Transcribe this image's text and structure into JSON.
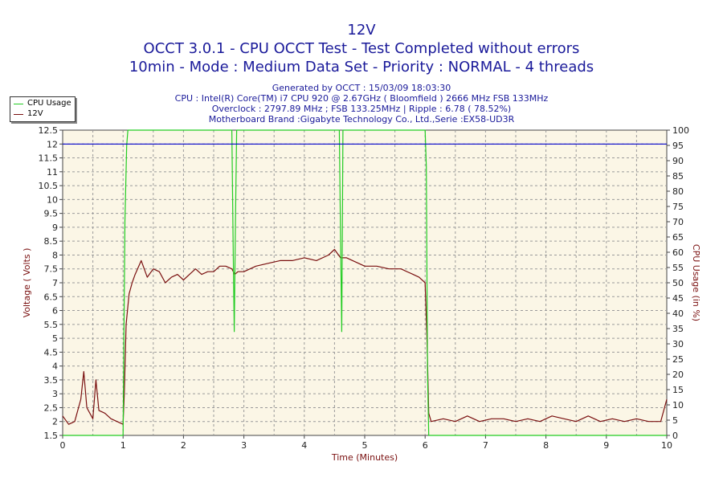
{
  "title": {
    "line1": "12V",
    "line2": "OCCT 3.0.1 - CPU OCCT Test - Test Completed without errors",
    "line3": "10min - Mode : Medium Data Set - Priority : NORMAL - 4 threads"
  },
  "info": {
    "generated": "Generated by OCCT : 15/03/09 18:03:30",
    "cpu": "CPU : Intel(R) Core(TM) i7 CPU 920 @ 2.67GHz ( Bloomfield ) 2666 MHz FSB 133MHz",
    "overclock": "Overclock : 2797.89 MHz ; FSB 133.25MHz | Ripple : 6.78 ( 78.52%)",
    "motherboard": "Motherboard Brand :Gigabyte Technology Co., Ltd.,Serie :EX58-UD3R"
  },
  "legend": {
    "cpu_usage": "CPU Usage",
    "v12": "12V"
  },
  "colors": {
    "cpu": "#22cc22",
    "v12": "#7a1010",
    "voltage_ref": "#0000cc",
    "plot_bg": "#fbf6e6",
    "title": "#1a1a9a"
  },
  "chart_data": {
    "type": "line",
    "xlabel": "Time (Minutes)",
    "ylabel_left": "Voltage ( Volts )",
    "ylabel_right": "CPU Usage (in %)",
    "xlim": [
      0,
      10
    ],
    "ylim_left": [
      1.5,
      12.5
    ],
    "ylim_right": [
      0,
      100
    ],
    "x_ticks": [
      "0",
      "1",
      "2",
      "3",
      "4",
      "5",
      "6",
      "7",
      "8",
      "9",
      "10"
    ],
    "y_ticks_left": [
      "1.5",
      "2",
      "2.5",
      "3",
      "3.5",
      "4",
      "4.5",
      "5",
      "5.5",
      "6",
      "6.5",
      "7",
      "7.5",
      "8",
      "8.5",
      "9",
      "9.5",
      "10",
      "10.5",
      "11",
      "11.5",
      "12",
      "12.5"
    ],
    "y_ticks_right": [
      "0",
      "5",
      "10",
      "15",
      "20",
      "25",
      "30",
      "35",
      "40",
      "45",
      "50",
      "55",
      "60",
      "65",
      "70",
      "75",
      "80",
      "85",
      "90",
      "95",
      "100"
    ],
    "grid": true,
    "legend_position": "top-left",
    "series": [
      {
        "name": "12V",
        "axis": "left",
        "x": [
          0,
          0.1,
          0.2,
          0.3,
          0.35,
          0.4,
          0.5,
          0.55,
          0.6,
          0.7,
          0.8,
          0.9,
          1.0,
          1.02,
          1.05,
          1.1,
          1.15,
          1.2,
          1.3,
          1.4,
          1.5,
          1.6,
          1.7,
          1.8,
          1.9,
          2.0,
          2.1,
          2.2,
          2.3,
          2.4,
          2.5,
          2.6,
          2.7,
          2.8,
          2.85,
          2.9,
          3.0,
          3.2,
          3.4,
          3.6,
          3.8,
          4.0,
          4.2,
          4.4,
          4.5,
          4.6,
          4.7,
          4.8,
          5.0,
          5.2,
          5.4,
          5.6,
          5.8,
          5.9,
          6.0,
          6.03,
          6.06,
          6.1,
          6.3,
          6.5,
          6.7,
          6.9,
          7.1,
          7.3,
          7.5,
          7.7,
          7.9,
          8.1,
          8.3,
          8.5,
          8.7,
          8.9,
          9.1,
          9.3,
          9.5,
          9.7,
          9.9,
          10.0
        ],
        "y": [
          2.2,
          1.9,
          2.0,
          2.8,
          3.8,
          2.5,
          2.1,
          3.5,
          2.4,
          2.3,
          2.1,
          2.0,
          1.9,
          3.0,
          5.5,
          6.6,
          7.0,
          7.3,
          7.8,
          7.2,
          7.5,
          7.4,
          7.0,
          7.2,
          7.3,
          7.1,
          7.3,
          7.5,
          7.3,
          7.4,
          7.4,
          7.6,
          7.6,
          7.5,
          7.3,
          7.4,
          7.4,
          7.6,
          7.7,
          7.8,
          7.8,
          7.9,
          7.8,
          8.0,
          8.2,
          7.9,
          7.9,
          7.8,
          7.6,
          7.6,
          7.5,
          7.5,
          7.3,
          7.2,
          7.0,
          5.0,
          2.3,
          2.0,
          2.1,
          2.0,
          2.2,
          2.0,
          2.1,
          2.1,
          2.0,
          2.1,
          2.0,
          2.2,
          2.1,
          2.0,
          2.2,
          2.0,
          2.1,
          2.0,
          2.1,
          2.0,
          2.0,
          2.8
        ]
      },
      {
        "name": "CPU Usage",
        "axis": "right",
        "x": [
          0,
          0.9,
          1.0,
          1.03,
          1.06,
          1.08,
          2.8,
          2.82,
          2.84,
          2.86,
          2.88,
          4.58,
          4.6,
          4.62,
          4.64,
          6.0,
          6.02,
          6.04,
          6.06,
          10.0
        ],
        "y": [
          0,
          0,
          0,
          70,
          95,
          100,
          100,
          65,
          34,
          70,
          100,
          100,
          65,
          34,
          100,
          100,
          88,
          20,
          0,
          0
        ]
      },
      {
        "name": "",
        "axis": "left",
        "x": [
          0,
          10
        ],
        "y": [
          12,
          12
        ]
      }
    ]
  }
}
